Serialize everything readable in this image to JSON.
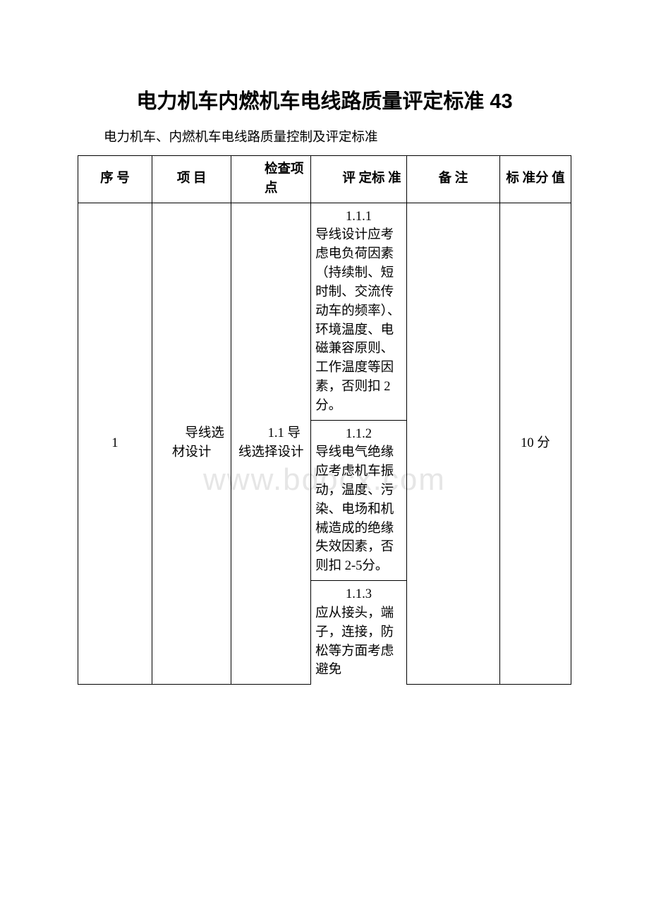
{
  "title": "电力机车内燃机车电线路质量评定标准 43",
  "subtitle": "电力机车、内燃机车电线路质量控制及评定标准",
  "watermark": "www.bdocx.com",
  "headers": {
    "seq": "序 号",
    "item": "项 目",
    "check": "检查项点",
    "std": "评 定标 准",
    "note": "备 注",
    "score": "标 准分 值"
  },
  "row": {
    "seq": "1",
    "item": "导线选材设计",
    "check": "1.1 导线选择设计",
    "std1_num": "1.1.1",
    "std1_body": "导线设计应考虑电负荷因素（持续制、短时制、交流传动车的频率）、环境温度、电磁兼容原则、工作温度等因素，否则扣 2 分。",
    "std2_num": "1.1.2",
    "std2_body": "导线电气绝缘应考虑机车振动，温度、污染、电场和机械造成的绝缘失效因素，否则扣 2-5分。",
    "std3_num": "1.1.3",
    "std3_body": "应从接头，端子，连接，防松等方面考虑避免",
    "score": "10 分"
  }
}
